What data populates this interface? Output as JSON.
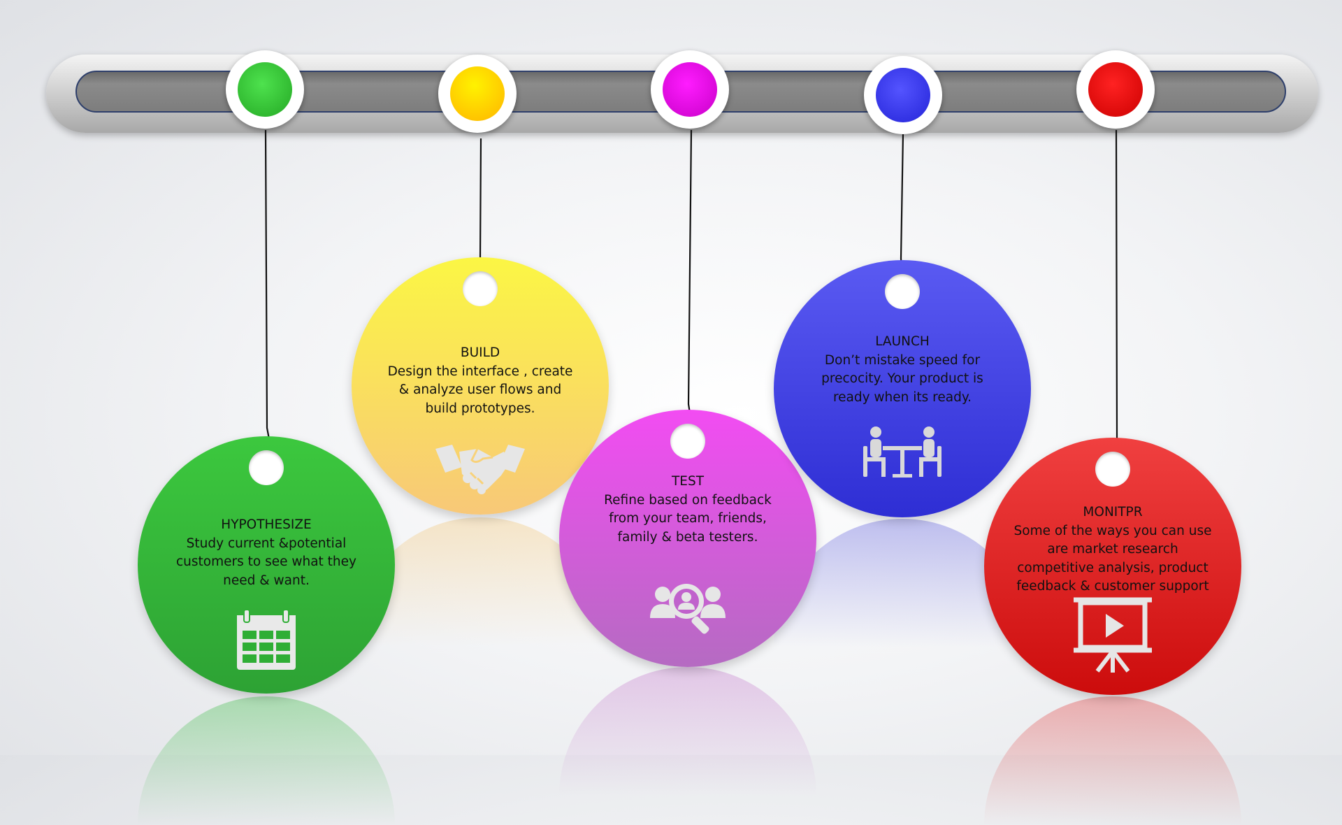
{
  "timeline": {
    "steps": [
      {
        "title": "HYPOTHESIZE",
        "description": "Study current &potential customers to see what they need & want.",
        "color": "#2fb83a",
        "knob_color": "#3ccf3c",
        "icon": "calendar-icon"
      },
      {
        "title": "BUILD",
        "description": "Design the interface , create & analyze user flows and build prototypes.",
        "color": "#f6e84a",
        "knob_color": "#ffd500",
        "icon": "handshake-icon"
      },
      {
        "title": "TEST",
        "description": "Refine based on feedback from your team, friends, family & beta testers.",
        "color": "#d64fe0",
        "knob_color": "#e600e6",
        "icon": "user-search-icon"
      },
      {
        "title": "LAUNCH",
        "description": "Don’t mistake speed for precocity. Your product is ready when its ready.",
        "color": "#4040e0",
        "knob_color": "#3a3aee",
        "icon": "meeting-table-icon"
      },
      {
        "title": "MONITPR",
        "description": "Some of the ways you can use are market research competitive analysis, product feedback & customer support",
        "color": "#e21f26",
        "knob_color": "#ee0000",
        "icon": "presentation-play-icon"
      }
    ]
  }
}
